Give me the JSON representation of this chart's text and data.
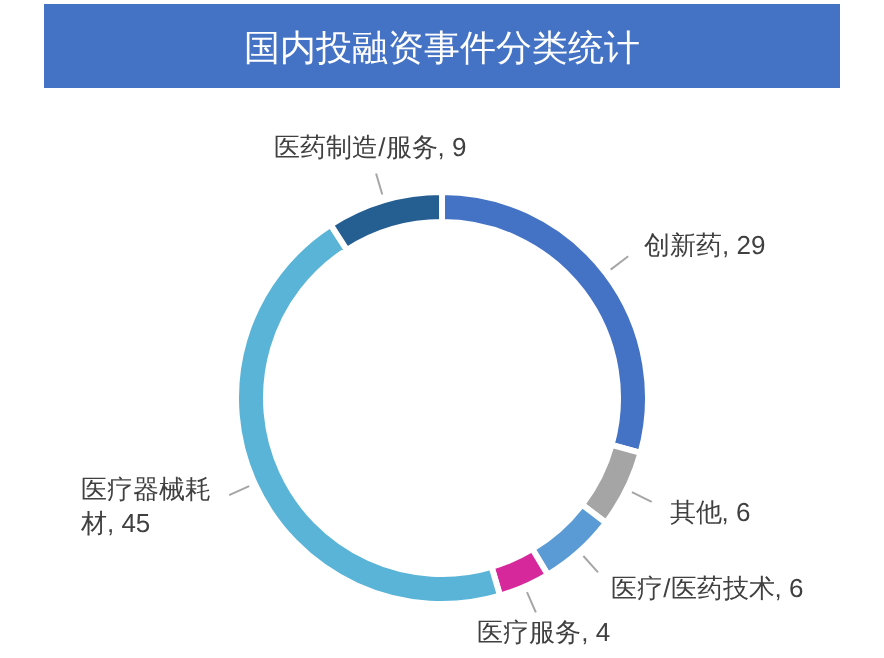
{
  "chart_data": {
    "type": "donut",
    "title": "国内投融资事件分类统计",
    "categories": [
      "创新药",
      "其他",
      "医疗/医药技术",
      "医疗服务",
      "医疗器械耗材",
      "医药制造/服务"
    ],
    "values": [
      29,
      6,
      6,
      4,
      45,
      9
    ],
    "colors": [
      "#4472c4",
      "#a5a5a5",
      "#5b9bd5",
      "#d6289b",
      "#5ab4d8",
      "#255e91"
    ],
    "value_labels": [
      ", 29",
      ", 6",
      ", 6",
      ", 4",
      ", 45",
      ", 9"
    ]
  }
}
